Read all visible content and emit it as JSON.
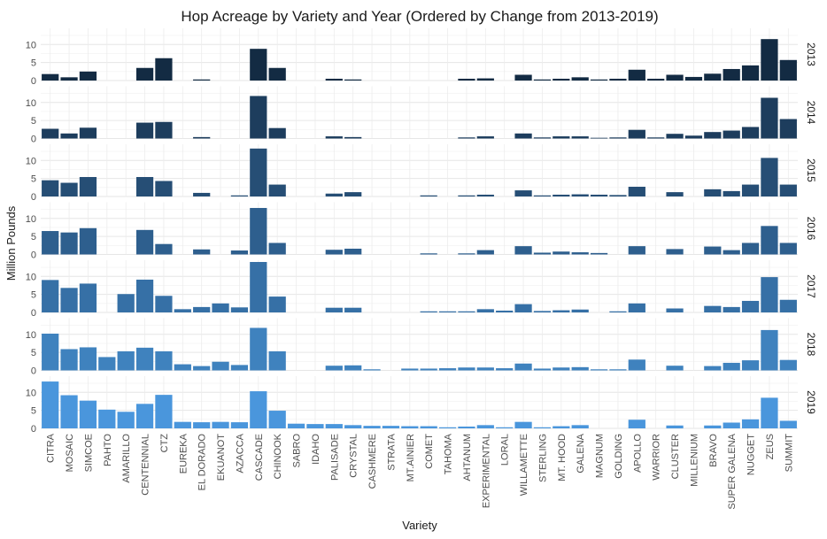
{
  "chart_data": {
    "type": "bar",
    "title": "Hop Acreage by Variety and Year (Ordered by Change from 2013-2019)",
    "xlabel": "Variety",
    "ylabel": "Million Pounds",
    "ylim": [
      0,
      14
    ],
    "yticks": [
      0,
      5,
      10
    ],
    "grid": true,
    "facet": "rows by year",
    "categories": [
      "CITRA",
      "MOSAIC",
      "SIMCOE",
      "PAHTO",
      "AMARILLO",
      "CENTENNIAL",
      "CTZ",
      "EUREKA",
      "EL DORADO",
      "EKUANOT",
      "AZACCA",
      "CASCADE",
      "CHINOOK",
      "SABRO",
      "IDAHO",
      "PALISADE",
      "CRYSTAL",
      "CASHMERE",
      "STRATA",
      "MT.AINIER",
      "COMET",
      "TAHOMA",
      "AHTANUM",
      "EXPERIMENTAL",
      "LORAL",
      "WILLAMETTE",
      "STERLING",
      "MT. HOOD",
      "GALENA",
      "MAGNUM",
      "GOLDING",
      "APOLLO",
      "WARRIOR",
      "CLUSTER",
      "MILLENIUM",
      "BRAVO",
      "SUPER GALENA",
      "NUGGET",
      "ZEUS",
      "SUMMIT"
    ],
    "series": [
      {
        "name": "2013",
        "color": "#132b43",
        "values": [
          1.8,
          0.9,
          2.5,
          0,
          0,
          3.5,
          6.2,
          0,
          0.3,
          0,
          0,
          8.8,
          3.5,
          0,
          0,
          0.5,
          0.3,
          0,
          0,
          0,
          0,
          0,
          0.5,
          0.6,
          0,
          1.6,
          0.3,
          0.5,
          0.9,
          0.3,
          0.5,
          3.0,
          0.5,
          1.6,
          1.0,
          1.9,
          3.2,
          4.2,
          11.5,
          5.7
        ]
      },
      {
        "name": "2014",
        "color": "#1d3d5d",
        "values": [
          2.7,
          1.4,
          3.0,
          0,
          0,
          4.4,
          4.6,
          0,
          0.4,
          0,
          0,
          11.8,
          2.9,
          0,
          0,
          0.6,
          0.4,
          0,
          0,
          0,
          0,
          0,
          0.3,
          0.6,
          0,
          1.4,
          0.3,
          0.6,
          0.6,
          0.2,
          0.3,
          2.4,
          0.3,
          1.3,
          0.8,
          1.8,
          2.2,
          3.2,
          11.3,
          5.4
        ]
      },
      {
        "name": "2015",
        "color": "#264e75",
        "values": [
          4.5,
          3.8,
          5.4,
          0,
          0,
          5.4,
          4.3,
          0,
          1.0,
          0,
          0.3,
          13.3,
          3.3,
          0,
          0,
          0.8,
          1.2,
          0,
          0,
          0,
          0.3,
          0,
          0.3,
          0.5,
          0,
          1.7,
          0.3,
          0.5,
          0.6,
          0.5,
          0.4,
          2.7,
          0,
          1.2,
          0,
          2.0,
          1.5,
          3.3,
          10.7,
          3.3
        ]
      },
      {
        "name": "2016",
        "color": "#2e5f8e",
        "values": [
          6.5,
          6.1,
          7.3,
          0,
          0,
          6.8,
          2.9,
          0,
          1.4,
          0,
          1.1,
          12.9,
          3.2,
          0,
          0,
          1.3,
          1.6,
          0,
          0,
          0,
          0.3,
          0,
          0.3,
          1.2,
          0,
          2.3,
          0.5,
          0.8,
          0.6,
          0.4,
          0,
          2.3,
          0,
          1.5,
          0,
          2.2,
          1.2,
          3.2,
          7.9,
          3.2
        ]
      },
      {
        "name": "2017",
        "color": "#3670a6",
        "values": [
          9.0,
          6.8,
          8.0,
          0,
          5.1,
          9.1,
          4.6,
          0.9,
          1.5,
          2.5,
          1.4,
          14.0,
          4.4,
          0,
          0,
          1.3,
          1.3,
          0,
          0,
          0,
          0.3,
          0.3,
          0.3,
          0.9,
          0.5,
          2.3,
          0.4,
          0.6,
          0.8,
          0,
          0.3,
          2.5,
          0,
          1.1,
          0,
          1.8,
          1.5,
          3.2,
          9.8,
          3.5
        ]
      },
      {
        "name": "2018",
        "color": "#3f82be",
        "values": [
          10.2,
          5.9,
          6.4,
          3.7,
          5.3,
          6.3,
          5.3,
          1.7,
          1.2,
          2.4,
          1.5,
          11.8,
          5.3,
          0,
          0,
          1.3,
          1.4,
          0.3,
          0,
          0.5,
          0.5,
          0.6,
          0.8,
          0.8,
          0.6,
          1.9,
          0.5,
          0.8,
          0.9,
          0.3,
          0.3,
          3.0,
          0,
          1.3,
          0,
          1.2,
          2.1,
          2.8,
          11.2,
          2.9
        ]
      },
      {
        "name": "2019",
        "color": "#4a96dc",
        "values": [
          13.0,
          9.2,
          7.7,
          5.2,
          4.6,
          6.8,
          9.3,
          1.8,
          1.7,
          1.8,
          1.7,
          10.3,
          4.9,
          1.3,
          1.2,
          1.2,
          0.9,
          0.7,
          0.7,
          0.6,
          0.6,
          0.3,
          0.5,
          0.9,
          0.3,
          1.8,
          0.3,
          0.6,
          0.9,
          0,
          0,
          2.4,
          0,
          0.8,
          0,
          0.8,
          1.6,
          2.5,
          8.5,
          2.1
        ]
      }
    ]
  }
}
